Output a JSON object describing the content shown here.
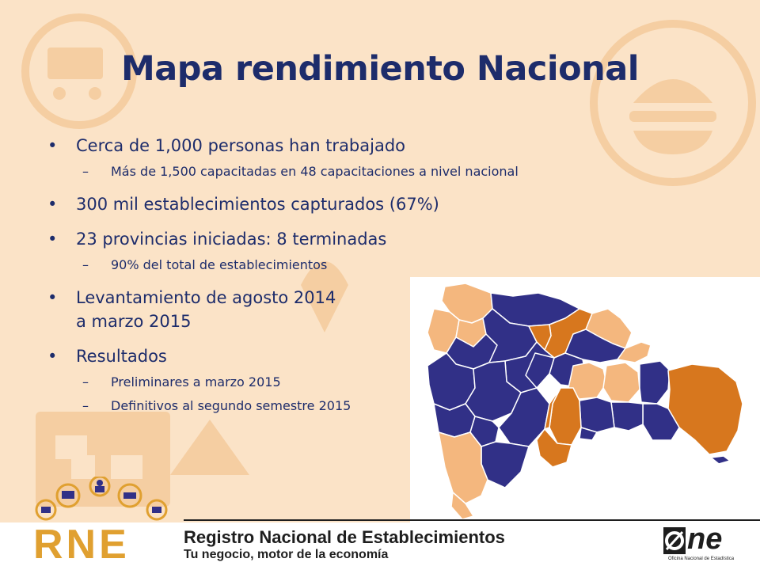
{
  "slide": {
    "title": "Mapa rendimiento Nacional",
    "bullets": [
      {
        "text": "Cerca de 1,000 personas han trabajado",
        "sub": [
          "Más de 1,500 capacitadas en 48 capacitaciones a nivel nacional"
        ]
      },
      {
        "text": "300 mil establecimientos capturados (67%)",
        "sub": []
      },
      {
        "text": "23 provincias iniciadas: 8 terminadas",
        "sub": [
          "90% del total de establecimientos"
        ]
      },
      {
        "text": "Levantamiento de agosto 2014",
        "continuation": "a marzo 2015",
        "sub": []
      },
      {
        "text": "Resultados",
        "sub": [
          "Preliminares a marzo 2015",
          "Definitivos al segundo semestre 2015"
        ]
      }
    ]
  },
  "map": {
    "colors": {
      "completed": "#313087",
      "in_progress": "#d7771e",
      "not_started": "#f4b77e"
    }
  },
  "footer": {
    "logo_text": "RNE",
    "title": "Registro Nacional de Establecimientos",
    "subtitle": "Tu negocio, motor de la economía",
    "org_logo": "ne",
    "org_caption": "Oficina Nacional de Estadística"
  },
  "colors": {
    "title": "#1d2c6b",
    "background": "#fbe3c7",
    "decor": "#f6cfa4"
  }
}
